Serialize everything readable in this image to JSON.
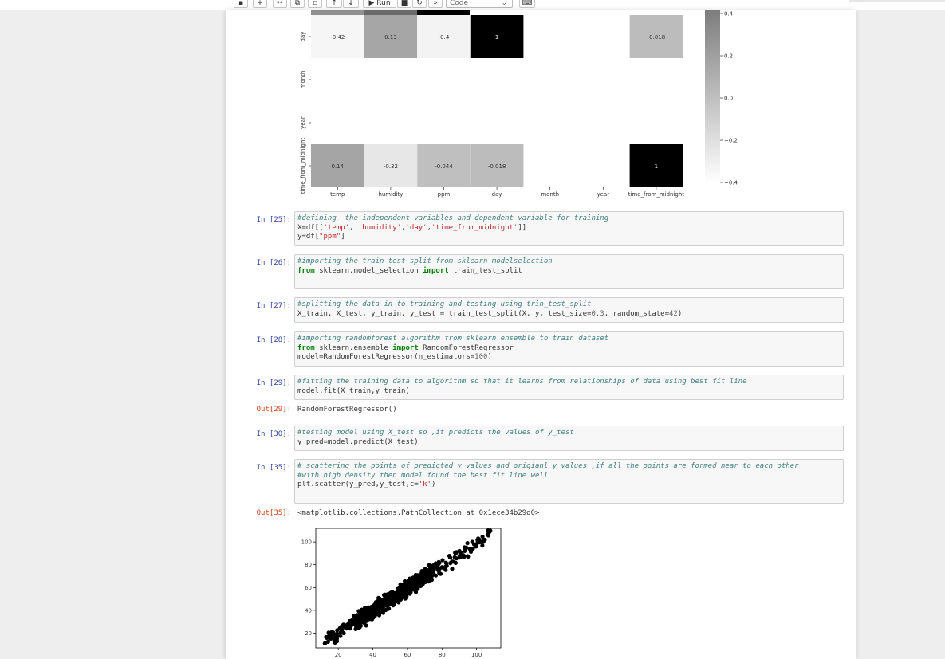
{
  "toolbar": {
    "run_label": "Run",
    "cell_type": "Code"
  },
  "heatmap": {
    "rows": [
      "day",
      "month",
      "year",
      "time_from_midnight"
    ],
    "cols": [
      "temp",
      "humidity",
      "ppm",
      "day",
      "month",
      "year",
      "time_from_midnight"
    ],
    "values": [
      [
        -0.42,
        0.13,
        -0.4,
        1,
        null,
        null,
        -0.018
      ],
      [
        null,
        null,
        null,
        null,
        null,
        null,
        null
      ],
      [
        null,
        null,
        null,
        null,
        null,
        null,
        null
      ],
      [
        0.14,
        -0.32,
        -0.044,
        -0.018,
        null,
        null,
        1
      ]
    ],
    "labels": [
      [
        "-0.42",
        "0.13",
        "-0.4",
        "1",
        "",
        "",
        "-0.018"
      ],
      [
        "",
        "",
        "",
        "",
        "",
        "",
        ""
      ],
      [
        "",
        "",
        "",
        "",
        "",
        "",
        ""
      ],
      [
        "0.14",
        "-0.32",
        "-0.044",
        "-0.018",
        "",
        "",
        "1"
      ]
    ],
    "colorbar_ticks": [
      "0.4",
      "0.2",
      "0.0",
      "−0.2",
      "−0.4"
    ],
    "colorbar_range": [
      -0.45,
      0.45
    ]
  },
  "cells": [
    {
      "prompt": "In [25]:",
      "lines": [
        "#defining  the independent variables and dependent variable for training",
        "X=df[['temp', 'humidity','day','time_from_midnight']]",
        "y=df[\"ppm\"]"
      ]
    },
    {
      "prompt": "In [26]:",
      "lines": [
        "#importing the train test split from sklearn modelselection",
        "from sklearn.model_selection import train_test_split"
      ]
    },
    {
      "prompt": "In [27]:",
      "lines": [
        "#splitting the data in to training and testing using trin_test_split",
        "X_train, X_test, y_train, y_test = train_test_split(X, y, test_size=0.3, random_state=42)"
      ]
    },
    {
      "prompt": "In [28]:",
      "lines": [
        "#importing randomforest algorithm from sklearn.ensemble to train dataset",
        "from sklearn.ensemble import RandomForestRegressor",
        "model=RandomForestRegressor(n_estimators=100)"
      ]
    },
    {
      "prompt": "In [29]:",
      "lines": [
        "#fitting the training data to algorithm so that it learns from relationships of data using best fit line",
        "model.fit(X_train,y_train)"
      ]
    },
    {
      "prompt": "In [30]:",
      "lines": [
        "#testing model using X_test so ,it predicts the values of y_test",
        "y_pred=model.predict(X_test)"
      ]
    },
    {
      "prompt": "In [35]:",
      "lines": [
        "# scattering the points of predicted y_values and origianl y_values ,if all the points are formed near to each other",
        "#with high density then model found the best fit line well",
        "plt.scatter(y_pred,y_test,c='k')"
      ]
    }
  ],
  "outputs": [
    {
      "prompt": "Out[29]:",
      "text": "RandomForestRegressor()"
    },
    {
      "prompt": "Out[35]:",
      "text": "<matplotlib.collections.PathCollection at 0x1ece34b29d0>"
    }
  ],
  "chart_data": {
    "type": "scatter",
    "x_ticks": [
      "20",
      "40",
      "60",
      "80",
      "100"
    ],
    "y_ticks": [
      "20",
      "40",
      "60",
      "80",
      "100"
    ],
    "xlim": [
      7,
      114
    ],
    "ylim": [
      7,
      112
    ],
    "trend": {
      "x_range": [
        12,
        108
      ],
      "slope": 0.97,
      "intercept": 1
    },
    "point_count": 900,
    "point_color": "#000000",
    "grid": false
  }
}
